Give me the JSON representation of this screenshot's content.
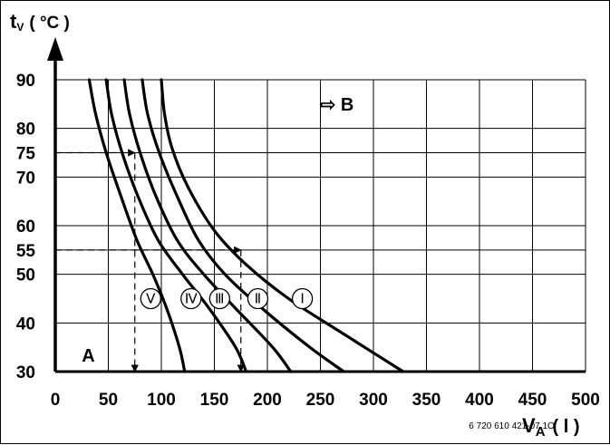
{
  "chart_data": {
    "type": "line",
    "y_axis": {
      "symbol": "t",
      "subscript": "V",
      "unit": "( °C )",
      "ylim": [
        30,
        90
      ],
      "ticks": [
        "30",
        "40",
        "50",
        "55",
        "60",
        "70",
        "75",
        "80",
        "90"
      ]
    },
    "x_axis": {
      "symbol": "V",
      "subscript": "A",
      "unit": "( l )",
      "xlim": [
        0,
        500
      ],
      "ticks": [
        "0",
        "50",
        "100",
        "150",
        "200",
        "250",
        "300",
        "350",
        "400",
        "450",
        "500"
      ]
    },
    "grid": true,
    "series": [
      {
        "name": "I",
        "x": [
          100,
          103,
          110,
          125,
          150,
          180,
          220,
          270,
          328
        ],
        "y": [
          90,
          83,
          76,
          68,
          59,
          52,
          45,
          38,
          30
        ]
      },
      {
        "name": "II",
        "x": [
          82,
          87,
          98,
          115,
          135,
          160,
          195,
          240,
          272
        ],
        "y": [
          90,
          83,
          75,
          66,
          57,
          50,
          43,
          35,
          30
        ]
      },
      {
        "name": "III",
        "x": [
          65,
          70,
          80,
          95,
          115,
          140,
          170,
          205,
          222
        ],
        "y": [
          90,
          83,
          75,
          66,
          57,
          50,
          43,
          35,
          30
        ]
      },
      {
        "name": "IV",
        "x": [
          48,
          53,
          63,
          78,
          97,
          120,
          145,
          170,
          180
        ],
        "y": [
          90,
          83,
          75,
          66,
          57,
          50,
          43,
          35,
          30
        ]
      },
      {
        "name": "V",
        "x": [
          32,
          38,
          48,
          62,
          77,
          92,
          105,
          117,
          122
        ],
        "y": [
          90,
          83,
          75,
          66,
          57,
          50,
          43,
          35,
          30
        ]
      }
    ],
    "curve_labels": [
      {
        "label": "Ⅰ",
        "x": 233,
        "y": 45
      },
      {
        "label": "Ⅱ",
        "x": 191,
        "y": 45
      },
      {
        "label": "Ⅲ",
        "x": 155,
        "y": 45
      },
      {
        "label": "Ⅳ",
        "x": 128,
        "y": 45
      },
      {
        "label": "Ⅴ",
        "x": 90,
        "y": 45
      }
    ],
    "annotations": [
      {
        "text": "⇨ B",
        "x": 250,
        "y": 87
      },
      {
        "text": "A",
        "x": 25,
        "y": 33
      },
      {
        "text": "6 720 610 421-07.1O",
        "x": 390,
        "y": 24.5
      }
    ],
    "reference_lines": [
      {
        "from": [
          0,
          75
        ],
        "to": [
          75,
          75
        ],
        "down_to": [
          75,
          30
        ]
      },
      {
        "from": [
          0,
          55
        ],
        "to": [
          175,
          55
        ],
        "down_to": [
          175,
          30
        ]
      }
    ]
  }
}
